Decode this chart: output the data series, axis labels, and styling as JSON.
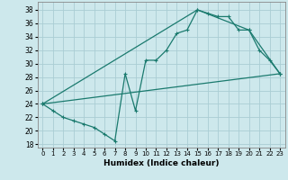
{
  "xlabel": "Humidex (Indice chaleur)",
  "background_color": "#cde8ec",
  "grid_color": "#aacdd4",
  "line_color": "#1a7a6e",
  "xlim": [
    -0.5,
    23.5
  ],
  "ylim": [
    17.5,
    39.2
  ],
  "xticks": [
    0,
    1,
    2,
    3,
    4,
    5,
    6,
    7,
    8,
    9,
    10,
    11,
    12,
    13,
    14,
    15,
    16,
    17,
    18,
    19,
    20,
    21,
    22,
    23
  ],
  "yticks": [
    18,
    20,
    22,
    24,
    26,
    28,
    30,
    32,
    34,
    36,
    38
  ],
  "series_main": [
    [
      0,
      24
    ],
    [
      1,
      23
    ],
    [
      2,
      22
    ],
    [
      3,
      21.5
    ],
    [
      4,
      21
    ],
    [
      5,
      20.5
    ],
    [
      6,
      19.5
    ],
    [
      7,
      18.5
    ],
    [
      8,
      28.5
    ],
    [
      9,
      23
    ],
    [
      10,
      30.5
    ],
    [
      11,
      30.5
    ],
    [
      12,
      32
    ],
    [
      13,
      34.5
    ],
    [
      14,
      35
    ],
    [
      15,
      38
    ],
    [
      16,
      37.5
    ],
    [
      17,
      37
    ],
    [
      18,
      37
    ],
    [
      19,
      35
    ],
    [
      20,
      35
    ],
    [
      21,
      32
    ],
    [
      22,
      30.5
    ],
    [
      23,
      28.5
    ]
  ],
  "series_diag": [
    [
      0,
      24
    ],
    [
      23,
      28.5
    ]
  ],
  "series_envelope": [
    [
      0,
      24
    ],
    [
      15,
      38
    ],
    [
      20,
      35
    ],
    [
      23,
      28.5
    ]
  ]
}
